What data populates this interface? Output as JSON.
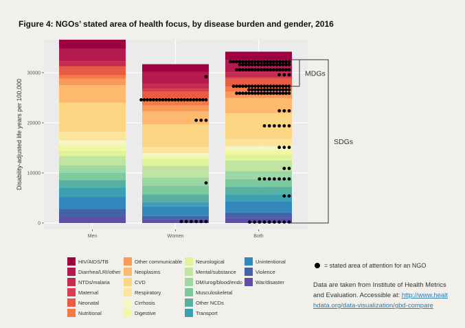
{
  "figure": {
    "title": "Figure 4: NGOs’ stated area of health focus, by disease burden and gender, 2016"
  },
  "chart_data": {
    "type": "bar",
    "stacked": true,
    "title": "",
    "xlabel": "",
    "ylabel": "Disability-adjusted life years per 100,000",
    "ylim": [
      0,
      35500
    ],
    "yticks": [
      0,
      10000,
      20000,
      30000
    ],
    "ytick_labels": [
      "0",
      "10000",
      "20000",
      "30000"
    ],
    "grid": true,
    "categories": [
      "Men",
      "Women",
      "Both"
    ],
    "series": [
      {
        "name": "War/disaster",
        "color": "#5e4fa2",
        "values": [
          1300,
          700,
          1000
        ]
      },
      {
        "name": "Violence",
        "color": "#4362a8",
        "values": [
          1500,
          700,
          1100
        ]
      },
      {
        "name": "Unintentional",
        "color": "#3288bd",
        "values": [
          2400,
          1900,
          2200
        ]
      },
      {
        "name": "Transport",
        "color": "#3d9fb2",
        "values": [
          1900,
          900,
          1400
        ]
      },
      {
        "name": "Other NCDs",
        "color": "#58b0a3",
        "values": [
          1500,
          1500,
          1500
        ]
      },
      {
        "name": "Musculoskeletal",
        "color": "#7eca9f",
        "values": [
          1400,
          1800,
          1600
        ]
      },
      {
        "name": "DM/urog/blood/endo",
        "color": "#9dd7a4",
        "values": [
          1500,
          1600,
          1550
        ]
      },
      {
        "name": "Mental/substance",
        "color": "#bfe5a0",
        "values": [
          1900,
          2300,
          2100
        ]
      },
      {
        "name": "Neurological",
        "color": "#e0f29a",
        "values": [
          1000,
          1300,
          1150
        ]
      },
      {
        "name": "Digestive",
        "color": "#f2f7a6",
        "values": [
          1200,
          800,
          1000
        ]
      },
      {
        "name": "Cirrhosis",
        "color": "#f6f7c6",
        "values": [
          900,
          500,
          700
        ]
      },
      {
        "name": "Respiratory",
        "color": "#fbe59a",
        "values": [
          1700,
          1200,
          1450
        ]
      },
      {
        "name": "CVD",
        "color": "#fdd683",
        "values": [
          5800,
          4500,
          5150
        ]
      },
      {
        "name": "Neoplasms",
        "color": "#fdba6e",
        "values": [
          3500,
          2600,
          3050
        ]
      },
      {
        "name": "Other communicable",
        "color": "#f99a58",
        "values": [
          1300,
          1200,
          1250
        ]
      },
      {
        "name": "Nutritional",
        "color": "#f47b49",
        "values": [
          700,
          1400,
          1050
        ]
      },
      {
        "name": "Neonatal",
        "color": "#e85c43",
        "values": [
          1800,
          1400,
          1600
        ]
      },
      {
        "name": "Maternal",
        "color": "#d53e4f",
        "values": [
          0,
          500,
          250
        ]
      },
      {
        "name": "NTDs/malaria",
        "color": "#c52a4f",
        "values": [
          1000,
          1000,
          1000
        ]
      },
      {
        "name": "Diarrhea/LRI/other",
        "color": "#b31a4d",
        "values": [
          2500,
          2400,
          2450
        ]
      },
      {
        "name": "HIV/AIDS/TB",
        "color": "#9e0142",
        "values": [
          1800,
          1500,
          1650
        ]
      }
    ],
    "dots": {
      "Women": [
        {
          "y": 29200,
          "count": 1
        },
        {
          "y": 24600,
          "count": 22
        },
        {
          "y": 20500,
          "count": 3
        },
        {
          "y": 8000,
          "count": 1
        },
        {
          "y": 300,
          "count": 6
        }
      ],
      "Both": [
        {
          "y": 32200,
          "count": 20
        },
        {
          "y": 31600,
          "count": 17
        },
        {
          "y": 30600,
          "count": 18
        },
        {
          "y": 29600,
          "count": 3
        },
        {
          "y": 27300,
          "count": 19
        },
        {
          "y": 26600,
          "count": 14
        },
        {
          "y": 25900,
          "count": 18
        },
        {
          "y": 22400,
          "count": 3
        },
        {
          "y": 19400,
          "count": 6
        },
        {
          "y": 15100,
          "count": 3
        },
        {
          "y": 10900,
          "count": 2
        },
        {
          "y": 8800,
          "count": 7
        },
        {
          "y": 5400,
          "count": 2
        },
        {
          "y": 200,
          "count": 9
        }
      ]
    },
    "brackets": [
      {
        "label": "MDGs",
        "y_from": 27300,
        "y_to": 32600
      },
      {
        "label": "SDGs",
        "y_from": 0,
        "y_to": 32600
      }
    ],
    "legend_placement": "bottom"
  },
  "legend": {
    "columns": [
      [
        "HIV/AIDS/TB",
        "Diarrhea/LRI/other",
        "NTDs/malaria",
        "Maternal",
        "Neonatal",
        "Nutritional"
      ],
      [
        "Other communicable",
        "Neoplasms",
        "CVD",
        "Respiratory",
        "Cirrhosis",
        "Digestive"
      ],
      [
        "Neurological",
        "Mental/substance",
        "DM/urog/blood/endo",
        "Musculoskeletal",
        "Other NCDs",
        "Transport"
      ],
      [
        "Unintentional",
        "Violence",
        "War/disaster"
      ]
    ]
  },
  "dot_key": {
    "label": "= stated area of attention for an NGO"
  },
  "source": {
    "text": "Data are taken from Institute of Health Metrics and Evaluation. Accessible at:",
    "link": "http://www.healthdata.org/data-visualization/gbd-compare"
  }
}
